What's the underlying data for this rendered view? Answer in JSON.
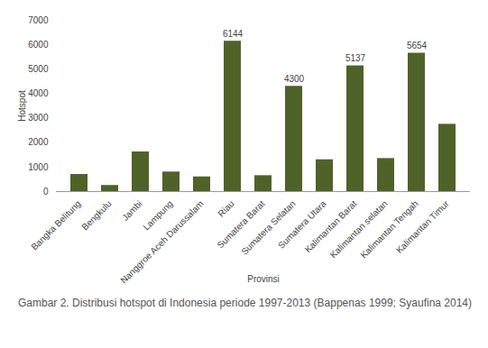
{
  "chart_data": {
    "type": "bar",
    "caption": "Gambar 2. Distribusi hotspot di Indonesia periode 1997-2013 (Bappenas 1999; Syaufina 2014)",
    "x_label": "Provinsi",
    "y_label": "Hotspot",
    "categories": [
      "Bangka Belitung",
      "Bengkulu",
      "Jambi",
      "Lampung",
      "Nanggroe Aceh Darussalam",
      "Riau",
      "Sumatera Barat",
      "Sumatera Selatan",
      "Sumatera Utara",
      "Kalimantan Barat",
      "Kalimantan selatan",
      "Kalimantan Tengah",
      "Kalimantan Timur"
    ],
    "values": [
      700,
      250,
      1620,
      800,
      600,
      6144,
      650,
      4300,
      1300,
      5137,
      1350,
      5654,
      2750
    ],
    "value_labels": [
      null,
      null,
      null,
      null,
      null,
      "6144",
      null,
      "4300",
      null,
      "5137",
      null,
      "5654",
      null
    ],
    "data_labels": true,
    "color": "#4f6228",
    "ylim": [
      0,
      7000
    ],
    "yticks": [
      0,
      1000,
      2000,
      3000,
      4000,
      5000,
      6000,
      7000
    ],
    "grid": false
  }
}
